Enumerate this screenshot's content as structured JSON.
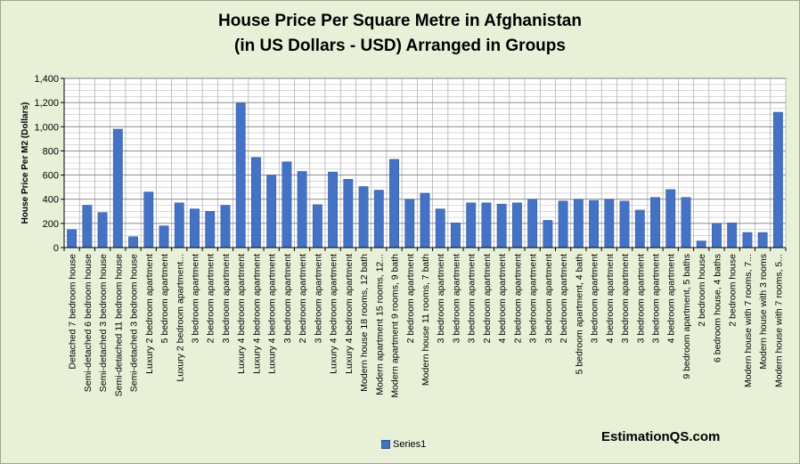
{
  "chart_data": {
    "type": "bar",
    "title_lines": [
      "House Price Per Square Metre in Afghanistan",
      "(in US Dollars - USD) Arranged in Groups"
    ],
    "ylabel": "House Price Per M2 (Dollars)",
    "ylim": [
      0,
      1400
    ],
    "yticks": [
      "0",
      "200",
      "400",
      "600",
      "800",
      "1,000",
      "1,200",
      "1,400"
    ],
    "yticks_values": [
      0,
      200,
      400,
      600,
      800,
      1000,
      1200,
      1400
    ],
    "grid": true,
    "legend": "bottom",
    "categories": [
      "Detached 7 bedroom house",
      "Semi-detached 6 bedroom house",
      "Semi-detached 3 bedroom house",
      "Semi-detached 11 bedroom house",
      "Semi-detached 3 bedroom house",
      "Luxury 2 bedroom apartment",
      "5 bedroom apartment",
      "Luxury 2 bedroom apartment...",
      "3 bedroom apartment",
      "2 bedroom apartment",
      "3 bedroom apartment",
      "Luxury 4 bedroom apartment",
      "Luxury 4 bedroom apartment",
      "Luxury 4 bedroom apartment",
      "3 bedroom apartment",
      "2 bedroom apartment",
      "3 bedroom apartment",
      "Luxury 4 bedroom apartment",
      "Luxury 4 bedroom apartment",
      "Modern house 18 rooms, 12 bath",
      "Modern apartment 15 rooms, 12...",
      "Modern apartment 9 rooms, 9 bath",
      "2 bedroom apartment",
      "Modern house 11 rooms, 7 bath",
      "3 bedroom apartment",
      "3 bedroom apartment",
      "3 bedroom apartment",
      "2 bedroom apartment",
      "4 bedroom apartment",
      "2 bedroom apartment",
      "3 bedroom apartment",
      "3 bedroom apartment",
      "2 bedroom apartment",
      "5 bedroom apartment, 4 bath",
      "3 bedroom apartment",
      "4 bedroom apartment",
      "3 bedroom apartment",
      "3 bedroom apartment",
      "3 bedroom apartment",
      "4 bedroom apartment",
      "9 bedroom apartment, 5 baths",
      "2 bedroom house",
      "6 bedroom house, 4 baths",
      "2 bedroom house",
      "Modern house with 7 rooms, 7...",
      "Modern house with 3 rooms",
      "Modern house with 7 rooms, 5..."
    ],
    "series": [
      {
        "name": "Series1",
        "color": "#4472c4",
        "values": [
          150,
          350,
          290,
          980,
          90,
          460,
          180,
          370,
          320,
          300,
          350,
          1195,
          745,
          600,
          710,
          630,
          355,
          625,
          565,
          505,
          475,
          730,
          400,
          450,
          320,
          205,
          370,
          370,
          360,
          370,
          400,
          225,
          385,
          400,
          390,
          400,
          385,
          310,
          415,
          480,
          415,
          55,
          200,
          205,
          125,
          125,
          1120
        ]
      }
    ]
  },
  "watermark": "EstimationQS.com"
}
